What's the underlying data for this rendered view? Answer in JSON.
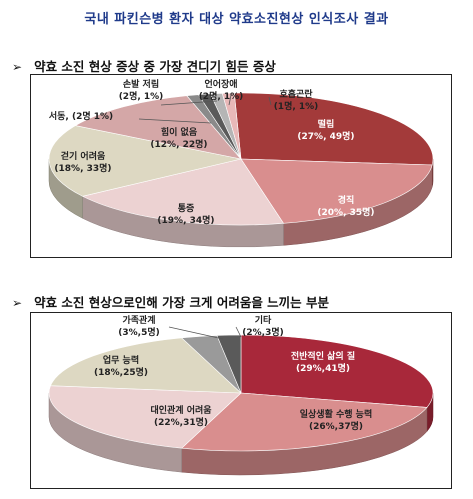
{
  "page_title": "국내 파킨슨병 환자 대상 약효소진현상 인식조사 결과",
  "bullet": "➢",
  "chart_data": [
    {
      "type": "pie",
      "title": "약효 소진 현상 증상 중 가장 견디기 힘든 증상",
      "slices": [
        {
          "label": "떨림",
          "value_text": "(27%, 49명)",
          "percent": 27,
          "count": 49,
          "color": "#a33a3a",
          "label_color": "#ffffff"
        },
        {
          "label": "경직",
          "value_text": "(20%, 35명)",
          "percent": 20,
          "count": 35,
          "color": "#d98e8e",
          "label_color": "#ffffff"
        },
        {
          "label": "통증",
          "value_text": "(19%, 34명)",
          "percent": 19,
          "count": 34,
          "color": "#ecd2d2",
          "label_color": "#222222"
        },
        {
          "label": "걷기 어려움",
          "value_text": "(18%, 33명)",
          "percent": 18,
          "count": 33,
          "color": "#ddd8c2",
          "label_color": "#222222"
        },
        {
          "label": "힘이 없음",
          "value_text": "(12%, 22명)",
          "percent": 12,
          "count": 22,
          "color": "#d4a7a7",
          "label_color": "#222222"
        },
        {
          "label": "서동,",
          "value_text": "(2명 1%)",
          "percent": 1,
          "count": 2,
          "color": "#8a8a8a",
          "label_color": "#222222"
        },
        {
          "label": "손발 저림",
          "value_text": "(2명, 1%)",
          "percent": 1,
          "count": 2,
          "color": "#5a5a5a",
          "label_color": "#222222"
        },
        {
          "label": "언어장애",
          "value_text": "(2명, 1%)",
          "percent": 1,
          "count": 2,
          "color": "#b5b5b5",
          "label_color": "#222222"
        },
        {
          "label": "호흡곤란",
          "value_text": "(1명, 1%)",
          "percent": 1,
          "count": 1,
          "color": "#e8b8b8",
          "label_color": "#222222"
        }
      ]
    },
    {
      "type": "pie",
      "title": "약효 소진 현상으로인해 가장 크게 어려움을 느끼는 부분",
      "slices": [
        {
          "label": "전반적인 삶의 질",
          "value_text": "(29%,41명)",
          "percent": 29,
          "count": 41,
          "color": "#a8283a",
          "label_color": "#ffffff"
        },
        {
          "label": "일상생활 수행 능력",
          "value_text": "(26%,37명)",
          "percent": 26,
          "count": 37,
          "color": "#d98e8e",
          "label_color": "#222222"
        },
        {
          "label": "대인관계 어려움",
          "value_text": "(22%,31명)",
          "percent": 22,
          "count": 31,
          "color": "#ecd2d2",
          "label_color": "#222222"
        },
        {
          "label": "업무 능력",
          "value_text": "(18%,25명)",
          "percent": 18,
          "count": 25,
          "color": "#ddd8c2",
          "label_color": "#222222"
        },
        {
          "label": "가족관계",
          "value_text": "(3%,5명)",
          "percent": 3,
          "count": 5,
          "color": "#9a9a9a",
          "label_color": "#222222"
        },
        {
          "label": "기타",
          "value_text": "(2%,3명)",
          "percent": 2,
          "count": 3,
          "color": "#5a5a5a",
          "label_color": "#222222"
        }
      ]
    }
  ]
}
